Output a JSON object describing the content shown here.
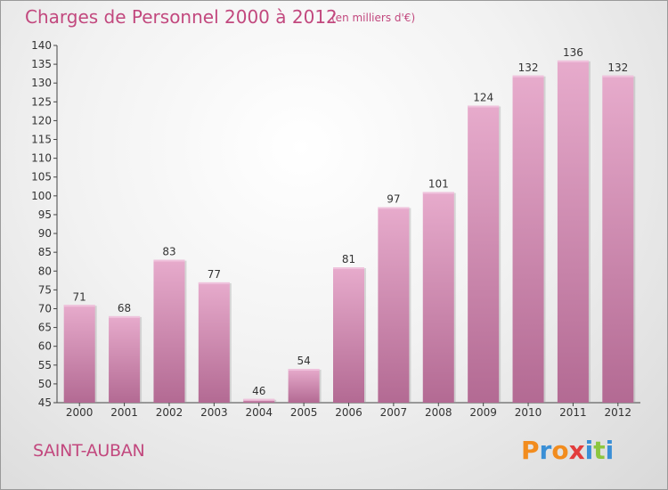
{
  "title": "Charges de Personnel 2000 à 2012",
  "subtitle": "(en milliers d'€)",
  "commune": "SAINT-AUBAN",
  "brand": {
    "letters": [
      "P",
      "r",
      "o",
      "x",
      "i",
      "t",
      "i"
    ],
    "colors": [
      "#f28c1e",
      "#3a8fd6",
      "#f28c1e",
      "#e23d3d",
      "#3a8fd6",
      "#8cc63f",
      "#3a8fd6"
    ]
  },
  "colors": {
    "bar": "#d98fb8",
    "bar_light": "#e7abcc",
    "bar_dark": "#b86e98",
    "title": "#c2487e"
  },
  "chart_data": {
    "type": "bar",
    "categories": [
      "2000",
      "2001",
      "2002",
      "2003",
      "2004",
      "2005",
      "2006",
      "2007",
      "2008",
      "2009",
      "2010",
      "2011",
      "2012"
    ],
    "values": [
      71,
      68,
      83,
      77,
      46,
      54,
      81,
      97,
      101,
      124,
      132,
      136,
      132
    ],
    "ylim": [
      45,
      140
    ],
    "yticks": [
      45,
      50,
      55,
      60,
      65,
      70,
      75,
      80,
      85,
      90,
      95,
      100,
      105,
      110,
      115,
      120,
      125,
      130,
      135,
      140
    ],
    "grid": false,
    "legend": "none"
  }
}
